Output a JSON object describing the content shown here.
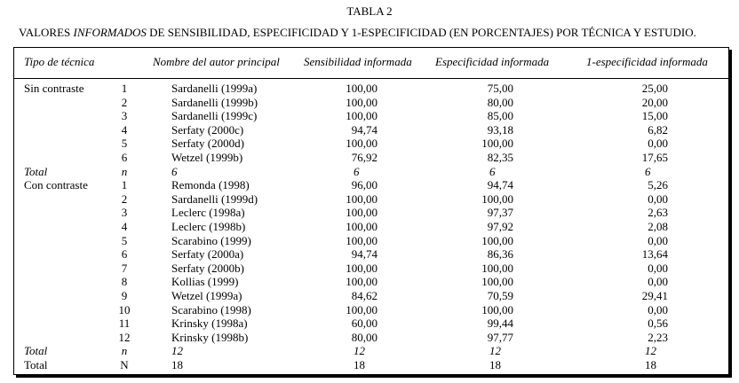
{
  "title": "TABLA 2",
  "subtitle": {
    "prefix": "VALORES ",
    "italic": "INFORMADOS",
    "suffix": " DE SENSIBILIDAD, ESPECIFICIDAD Y 1-ESPECIFICIDAD (EN PORCENTAJES) POR TÉCNICA Y ESTUDIO."
  },
  "headers": [
    "Tipo de técnica",
    "Nombre del autor principal",
    "Sensibilidad informada",
    "Especificidad informada",
    "1-especificidad informada"
  ],
  "groups": [
    {
      "label": "Sin contraste",
      "rows": [
        [
          "1",
          "Sardanelli (1999a)",
          "100,00",
          "75,00",
          "25,00"
        ],
        [
          "2",
          "Sardanelli (1999b)",
          "100,00",
          "80,00",
          "20,00"
        ],
        [
          "3",
          "Sardanelli (1999c)",
          "100,00",
          "85,00",
          "15,00"
        ],
        [
          "4",
          "Serfaty (2000c)",
          "94,74",
          "93,18",
          "6,82"
        ],
        [
          "5",
          "Serfaty (2000d)",
          "100,00",
          "100,00",
          "0,00"
        ],
        [
          "6",
          "Wetzel (1999b)",
          "76,92",
          "82,35",
          "17,65"
        ]
      ],
      "total": [
        "Total",
        "n",
        "6",
        "6",
        "6",
        "6"
      ]
    },
    {
      "label": "Con contraste",
      "rows": [
        [
          "1",
          "Remonda (1998)",
          "96,00",
          "94,74",
          "5,26"
        ],
        [
          "2",
          "Sardanelli (1999d)",
          "100,00",
          "100,00",
          "0,00"
        ],
        [
          "3",
          "Leclerc (1998a)",
          "100,00",
          "97,37",
          "2,63"
        ],
        [
          "4",
          "Leclerc (1998b)",
          "100,00",
          "97,92",
          "2,08"
        ],
        [
          "5",
          "Scarabino (1999)",
          "100,00",
          "100,00",
          "0,00"
        ],
        [
          "6",
          "Serfaty (2000a)",
          "94,74",
          "86,36",
          "13,64"
        ],
        [
          "7",
          "Serfaty (2000b)",
          "100,00",
          "100,00",
          "0,00"
        ],
        [
          "8",
          "Kollias (1999)",
          "100,00",
          "100,00",
          "0,00"
        ],
        [
          "9",
          "Wetzel (1999a)",
          "84,62",
          "70,59",
          "29,41"
        ],
        [
          "10",
          "Scarabino (1998)",
          "100,00",
          "100,00",
          "0,00"
        ],
        [
          "11",
          "Krinsky (1998a)",
          "60,00",
          "99,44",
          "0,56"
        ],
        [
          "12",
          "Krinsky (1998b)",
          "80,00",
          "97,77",
          "2,23"
        ]
      ],
      "total": [
        "Total",
        "n",
        "12",
        "12",
        "12",
        "12"
      ]
    }
  ],
  "grand_total": [
    "Total",
    "N",
    "18",
    "18",
    "18",
    "18"
  ]
}
